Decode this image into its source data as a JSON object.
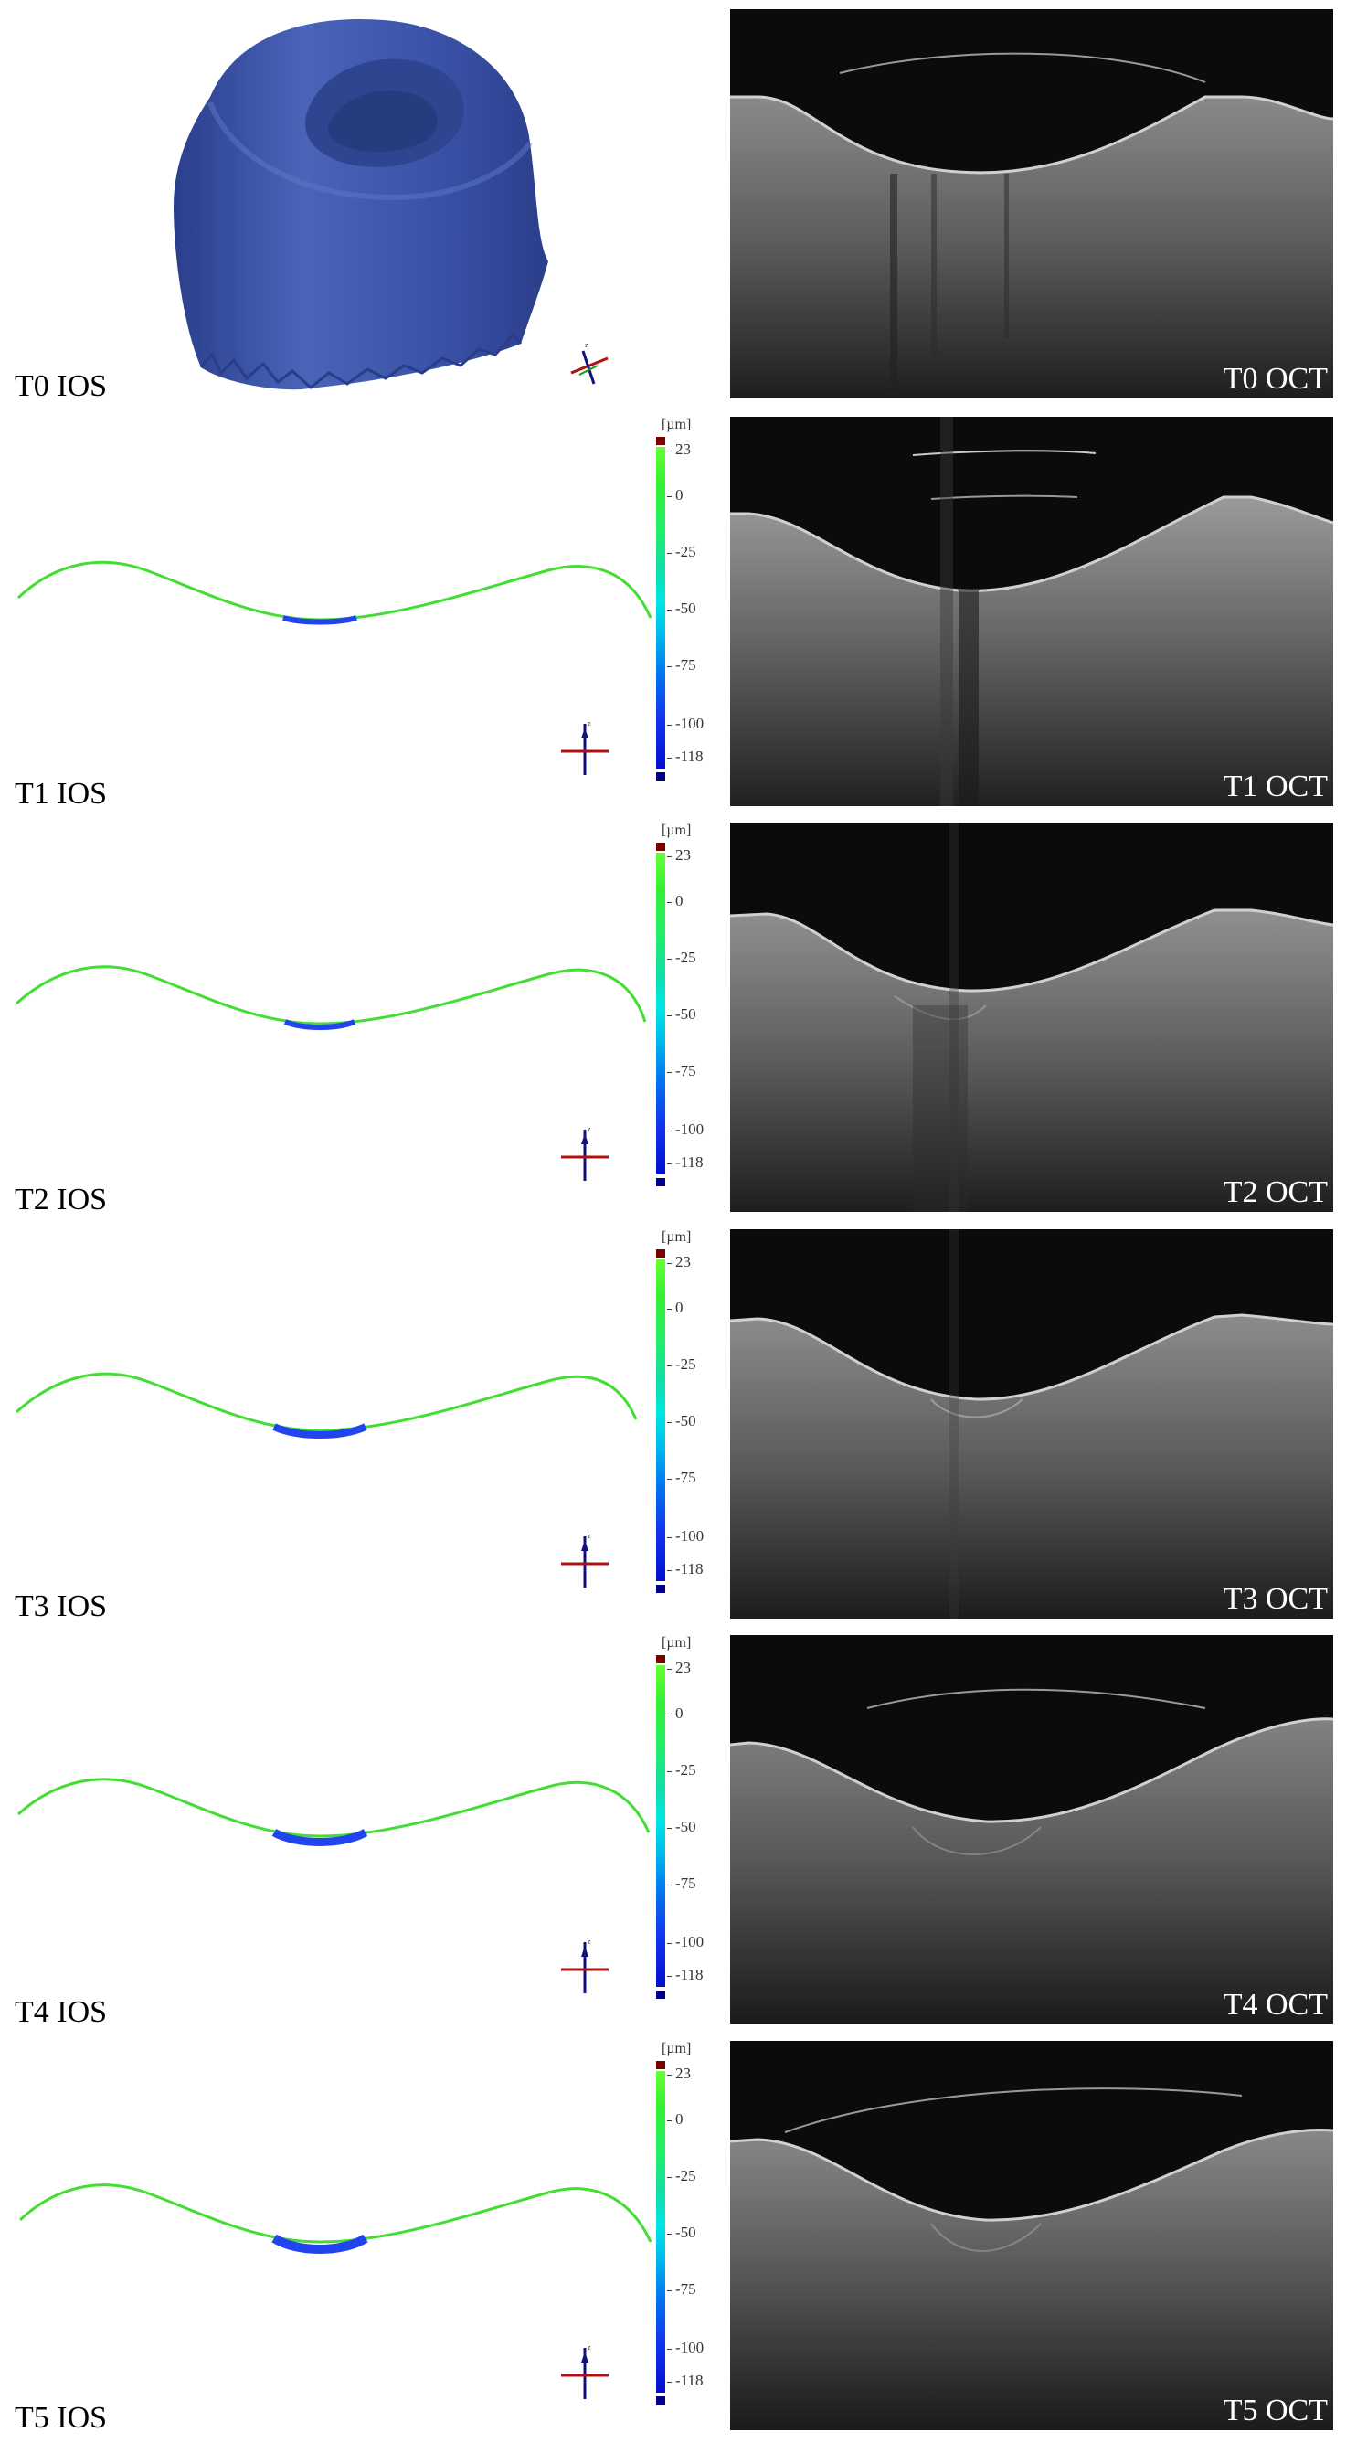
{
  "panels": [
    {
      "ios_label": "T0 IOS",
      "oct_label": "T0 OCT"
    },
    {
      "ios_label": "T1 IOS",
      "oct_label": "T1 OCT"
    },
    {
      "ios_label": "T2 IOS",
      "oct_label": "T2 OCT"
    },
    {
      "ios_label": "T3 IOS",
      "oct_label": "T3 OCT"
    },
    {
      "ios_label": "T4 IOS",
      "oct_label": "T4 OCT"
    },
    {
      "ios_label": "T5 IOS",
      "oct_label": "T5 OCT"
    }
  ],
  "colorbar": {
    "unit": "[µm]",
    "ticks": [
      "23",
      "0",
      "-25",
      "-50",
      "-75",
      "-100",
      "-118"
    ],
    "tick_values": [
      23,
      0,
      -25,
      -50,
      -75,
      -100,
      -118
    ],
    "range": [
      -118,
      23
    ],
    "top_color": "#7a0000",
    "bottom_color": "#000088"
  },
  "colors": {
    "tooth_model": "#3d56a6",
    "oct_background": "#0b0b0b",
    "profile_line": "#44dd33",
    "profile_deviation": "#2244ee"
  }
}
